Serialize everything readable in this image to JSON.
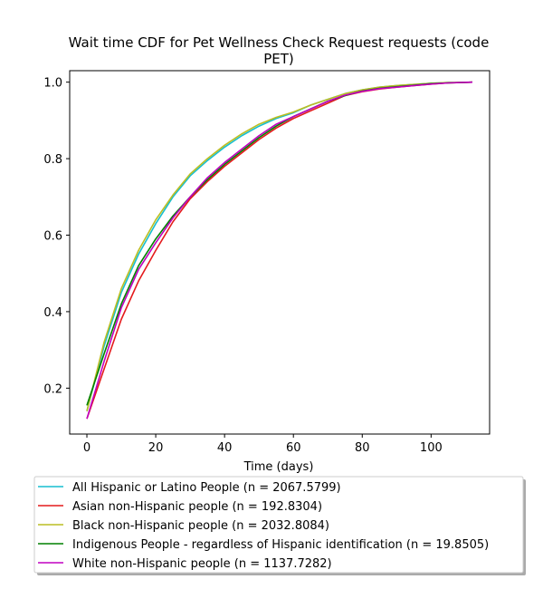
{
  "chart_data": {
    "type": "line",
    "title_line1": "Wait time CDF for Pet Wellness Check Request  requests (code",
    "title_line2": "PET)",
    "xlabel": "Time (days)",
    "ylabel": "",
    "xlim": [
      -5,
      117
    ],
    "ylim": [
      0.08,
      1.03
    ],
    "xticks": [
      0,
      20,
      40,
      60,
      80,
      100
    ],
    "yticks": [
      0.2,
      0.4,
      0.6,
      0.8,
      1.0
    ],
    "ytick_labels": [
      "0.2",
      "0.4",
      "0.6",
      "0.8",
      "1.0"
    ],
    "grid": false,
    "legend_position": "below",
    "series": [
      {
        "name": "All Hispanic or Latino People (n = 2067.5799)",
        "color": "#17becf",
        "x": [
          0,
          5,
          10,
          15,
          20,
          25,
          30,
          35,
          40,
          45,
          50,
          55,
          60,
          65,
          70,
          75,
          80,
          85,
          90,
          95,
          100,
          105,
          112
        ],
        "y": [
          0.14,
          0.31,
          0.45,
          0.55,
          0.63,
          0.7,
          0.755,
          0.795,
          0.83,
          0.86,
          0.885,
          0.905,
          0.92,
          0.94,
          0.955,
          0.97,
          0.98,
          0.987,
          0.991,
          0.994,
          0.997,
          0.999,
          1.0
        ]
      },
      {
        "name": "Asian non-Hispanic people (n = 192.8304)",
        "color": "#e41a1c",
        "x": [
          0,
          5,
          10,
          15,
          20,
          25,
          30,
          35,
          40,
          45,
          50,
          55,
          60,
          65,
          70,
          75,
          80,
          85,
          90,
          95,
          100,
          105,
          112
        ],
        "y": [
          0.12,
          0.25,
          0.38,
          0.48,
          0.56,
          0.635,
          0.695,
          0.74,
          0.78,
          0.815,
          0.85,
          0.88,
          0.905,
          0.925,
          0.945,
          0.965,
          0.975,
          0.982,
          0.987,
          0.991,
          0.995,
          0.998,
          1.0
        ]
      },
      {
        "name": "Black non-Hispanic people (n = 2032.8084)",
        "color": "#bcbd22",
        "x": [
          0,
          5,
          10,
          15,
          20,
          25,
          30,
          35,
          40,
          45,
          50,
          55,
          60,
          65,
          70,
          75,
          80,
          85,
          90,
          95,
          100,
          105,
          112
        ],
        "y": [
          0.14,
          0.32,
          0.46,
          0.56,
          0.64,
          0.705,
          0.76,
          0.8,
          0.835,
          0.865,
          0.89,
          0.908,
          0.922,
          0.94,
          0.955,
          0.97,
          0.98,
          0.987,
          0.991,
          0.994,
          0.997,
          0.999,
          1.0
        ]
      },
      {
        "name": "Indigenous People - regardless of Hispanic identification (n = 19.8505)",
        "color": "#008000",
        "x": [
          0,
          5,
          10,
          15,
          20,
          25,
          30,
          35,
          40,
          45,
          50,
          55,
          60,
          65,
          70,
          75,
          80,
          85,
          90,
          95,
          100,
          105,
          112
        ],
        "y": [
          0.155,
          0.29,
          0.42,
          0.52,
          0.59,
          0.65,
          0.7,
          0.745,
          0.785,
          0.82,
          0.855,
          0.885,
          0.91,
          0.93,
          0.95,
          0.965,
          0.977,
          0.984,
          0.988,
          0.992,
          0.996,
          0.998,
          1.0
        ]
      },
      {
        "name": "White non-Hispanic people (n = 1137.7282)",
        "color": "#c000c0",
        "x": [
          0,
          5,
          10,
          15,
          20,
          25,
          30,
          35,
          40,
          45,
          50,
          55,
          60,
          65,
          70,
          75,
          80,
          85,
          90,
          95,
          100,
          105,
          112
        ],
        "y": [
          0.12,
          0.27,
          0.41,
          0.51,
          0.58,
          0.645,
          0.7,
          0.75,
          0.79,
          0.825,
          0.86,
          0.89,
          0.91,
          0.93,
          0.95,
          0.966,
          0.976,
          0.983,
          0.987,
          0.991,
          0.995,
          0.998,
          1.0
        ]
      }
    ]
  }
}
